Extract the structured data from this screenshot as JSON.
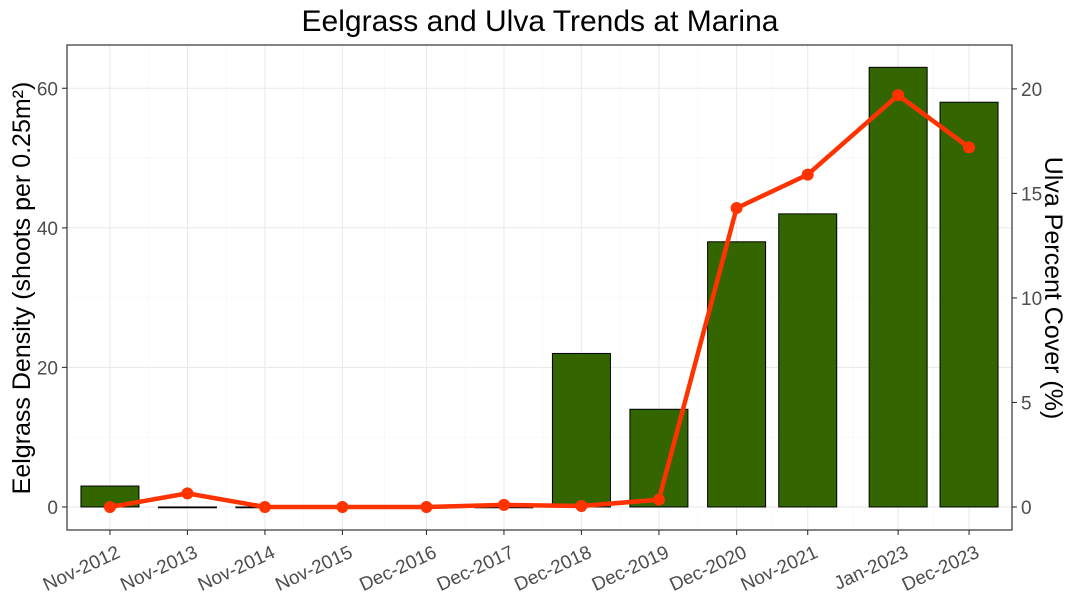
{
  "chart_data": {
    "type": "bar",
    "title": "Eelgrass and Ulva Trends at Marina",
    "xlabel": "",
    "ylabel": "Eelgrass Density (shoots per 0.25m²)",
    "y2label": "Ulva Percent Cover (%)",
    "x_dates": [
      "2012-11-15",
      "2013-11-15",
      "2014-11-15",
      "2015-11-15",
      "2016-12-15",
      "2017-12-15",
      "2018-12-15",
      "2019-12-15",
      "2020-12-15",
      "2021-11-15",
      "2023-01-15",
      "2023-12-15"
    ],
    "x_tick_labels": [
      "Nov-2012",
      "Nov-2013",
      "Nov-2014",
      "Nov-2015",
      "Dec-2016",
      "Dec-2017",
      "Dec-2018",
      "Dec-2019",
      "Dec-2020",
      "Nov-2021",
      "Jan-2023",
      "Dec-2023"
    ],
    "ylim": [
      -3.3,
      66.2
    ],
    "yticks": [
      0,
      20,
      40,
      60
    ],
    "y2lim": [
      -1.1,
      22.1
    ],
    "y2ticks": [
      0,
      5,
      10,
      15,
      20
    ],
    "series": [
      {
        "name": "",
        "type": "bar",
        "axis": "left",
        "color": "#336600",
        "values": [
          3,
          0,
          0,
          0,
          0,
          0,
          22,
          14,
          38,
          42,
          63,
          58
        ]
      },
      {
        "name": "",
        "type": "line",
        "axis": "right",
        "color": "#ff3300",
        "values": [
          0,
          0.65,
          0,
          0,
          0,
          0.1,
          0.05,
          0.35,
          14.3,
          15.9,
          19.7,
          17.2
        ]
      }
    ],
    "grid": true,
    "legend": "none"
  }
}
